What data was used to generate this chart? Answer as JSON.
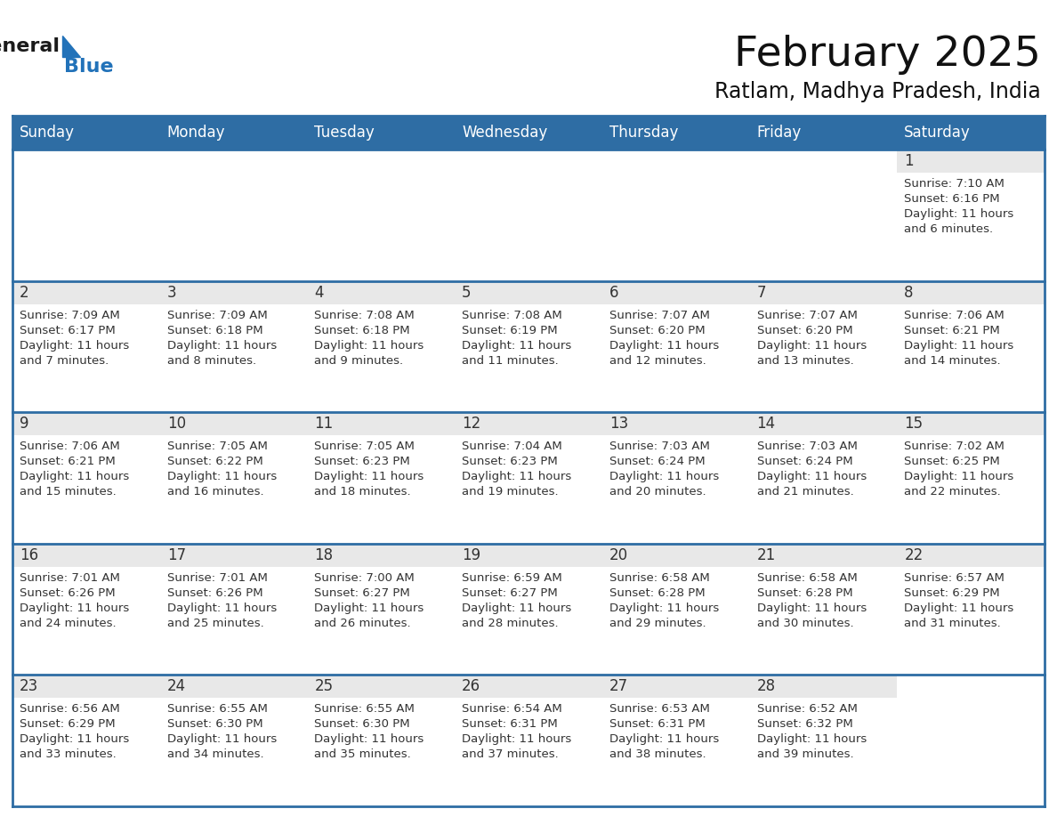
{
  "title": "February 2025",
  "subtitle": "Ratlam, Madhya Pradesh, India",
  "days_of_week": [
    "Sunday",
    "Monday",
    "Tuesday",
    "Wednesday",
    "Thursday",
    "Friday",
    "Saturday"
  ],
  "header_bg": "#2E6DA4",
  "header_text": "#FFFFFF",
  "cell_day_bg": "#E8E8E8",
  "cell_info_bg": "#FFFFFF",
  "border_color": "#2E6DA4",
  "day_num_color": "#333333",
  "info_text_color": "#333333",
  "logo_general_color": "#1a1a1a",
  "logo_blue_color": "#2272b9",
  "calendar": [
    [
      null,
      null,
      null,
      null,
      null,
      null,
      {
        "day": 1,
        "sunrise": "7:10 AM",
        "sunset": "6:16 PM",
        "daylight": "11 hours\nand 6 minutes."
      }
    ],
    [
      {
        "day": 2,
        "sunrise": "7:09 AM",
        "sunset": "6:17 PM",
        "daylight": "11 hours\nand 7 minutes."
      },
      {
        "day": 3,
        "sunrise": "7:09 AM",
        "sunset": "6:18 PM",
        "daylight": "11 hours\nand 8 minutes."
      },
      {
        "day": 4,
        "sunrise": "7:08 AM",
        "sunset": "6:18 PM",
        "daylight": "11 hours\nand 9 minutes."
      },
      {
        "day": 5,
        "sunrise": "7:08 AM",
        "sunset": "6:19 PM",
        "daylight": "11 hours\nand 11 minutes."
      },
      {
        "day": 6,
        "sunrise": "7:07 AM",
        "sunset": "6:20 PM",
        "daylight": "11 hours\nand 12 minutes."
      },
      {
        "day": 7,
        "sunrise": "7:07 AM",
        "sunset": "6:20 PM",
        "daylight": "11 hours\nand 13 minutes."
      },
      {
        "day": 8,
        "sunrise": "7:06 AM",
        "sunset": "6:21 PM",
        "daylight": "11 hours\nand 14 minutes."
      }
    ],
    [
      {
        "day": 9,
        "sunrise": "7:06 AM",
        "sunset": "6:21 PM",
        "daylight": "11 hours\nand 15 minutes."
      },
      {
        "day": 10,
        "sunrise": "7:05 AM",
        "sunset": "6:22 PM",
        "daylight": "11 hours\nand 16 minutes."
      },
      {
        "day": 11,
        "sunrise": "7:05 AM",
        "sunset": "6:23 PM",
        "daylight": "11 hours\nand 18 minutes."
      },
      {
        "day": 12,
        "sunrise": "7:04 AM",
        "sunset": "6:23 PM",
        "daylight": "11 hours\nand 19 minutes."
      },
      {
        "day": 13,
        "sunrise": "7:03 AM",
        "sunset": "6:24 PM",
        "daylight": "11 hours\nand 20 minutes."
      },
      {
        "day": 14,
        "sunrise": "7:03 AM",
        "sunset": "6:24 PM",
        "daylight": "11 hours\nand 21 minutes."
      },
      {
        "day": 15,
        "sunrise": "7:02 AM",
        "sunset": "6:25 PM",
        "daylight": "11 hours\nand 22 minutes."
      }
    ],
    [
      {
        "day": 16,
        "sunrise": "7:01 AM",
        "sunset": "6:26 PM",
        "daylight": "11 hours\nand 24 minutes."
      },
      {
        "day": 17,
        "sunrise": "7:01 AM",
        "sunset": "6:26 PM",
        "daylight": "11 hours\nand 25 minutes."
      },
      {
        "day": 18,
        "sunrise": "7:00 AM",
        "sunset": "6:27 PM",
        "daylight": "11 hours\nand 26 minutes."
      },
      {
        "day": 19,
        "sunrise": "6:59 AM",
        "sunset": "6:27 PM",
        "daylight": "11 hours\nand 28 minutes."
      },
      {
        "day": 20,
        "sunrise": "6:58 AM",
        "sunset": "6:28 PM",
        "daylight": "11 hours\nand 29 minutes."
      },
      {
        "day": 21,
        "sunrise": "6:58 AM",
        "sunset": "6:28 PM",
        "daylight": "11 hours\nand 30 minutes."
      },
      {
        "day": 22,
        "sunrise": "6:57 AM",
        "sunset": "6:29 PM",
        "daylight": "11 hours\nand 31 minutes."
      }
    ],
    [
      {
        "day": 23,
        "sunrise": "6:56 AM",
        "sunset": "6:29 PM",
        "daylight": "11 hours\nand 33 minutes."
      },
      {
        "day": 24,
        "sunrise": "6:55 AM",
        "sunset": "6:30 PM",
        "daylight": "11 hours\nand 34 minutes."
      },
      {
        "day": 25,
        "sunrise": "6:55 AM",
        "sunset": "6:30 PM",
        "daylight": "11 hours\nand 35 minutes."
      },
      {
        "day": 26,
        "sunrise": "6:54 AM",
        "sunset": "6:31 PM",
        "daylight": "11 hours\nand 37 minutes."
      },
      {
        "day": 27,
        "sunrise": "6:53 AM",
        "sunset": "6:31 PM",
        "daylight": "11 hours\nand 38 minutes."
      },
      {
        "day": 28,
        "sunrise": "6:52 AM",
        "sunset": "6:32 PM",
        "daylight": "11 hours\nand 39 minutes."
      },
      null
    ]
  ],
  "num_rows": 5,
  "num_cols": 7
}
